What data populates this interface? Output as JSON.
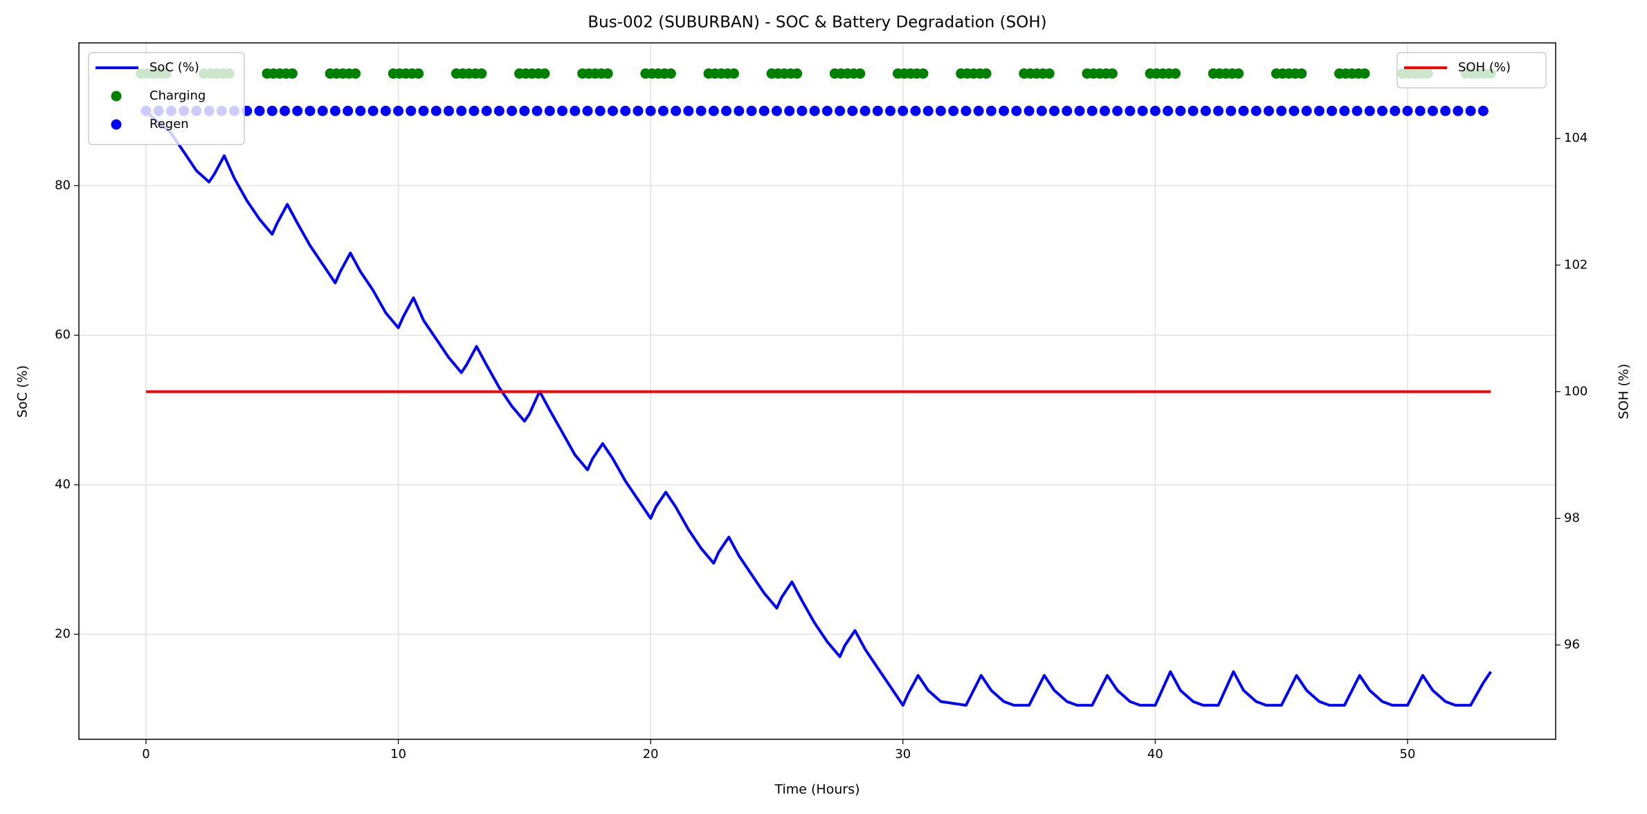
{
  "chart_data": {
    "type": "line",
    "title": "Bus-002 (SUBURBAN) - SOC & Battery Degradation (SOH)",
    "xlabel": "Time (Hours)",
    "ylabel": "SoC (%)",
    "y2label": "SOH (%)",
    "xlim": [
      -2.66,
      55.87
    ],
    "ylim": [
      5.95,
      99.1
    ],
    "y2lim": [
      94.51,
      105.51
    ],
    "xticks": [
      0,
      10,
      20,
      30,
      40,
      50
    ],
    "yticks": [
      20,
      40,
      60,
      80
    ],
    "y2ticks": [
      96,
      98,
      100,
      102,
      104
    ],
    "grid": true,
    "legend": "upper left",
    "y2_legend": "upper right",
    "series": [
      {
        "name": "SoC (%)",
        "type": "line",
        "color": "#0000ff",
        "x": [
          0,
          0.3,
          1.0,
          1.5,
          2.0,
          2.5,
          2.7,
          3.1,
          3.5,
          4.0,
          4.5,
          5.0,
          5.2,
          5.6,
          6.0,
          6.5,
          7.0,
          7.5,
          7.7,
          8.1,
          8.5,
          9.0,
          9.5,
          10.0,
          10.2,
          10.6,
          11.0,
          11.5,
          12.0,
          12.5,
          12.7,
          13.1,
          13.5,
          14.0,
          14.5,
          15.0,
          15.2,
          15.6,
          16.0,
          16.5,
          17.0,
          17.5,
          17.7,
          18.1,
          18.5,
          19.0,
          19.5,
          20.0,
          20.2,
          20.6,
          21.0,
          21.5,
          22.0,
          22.5,
          22.7,
          23.1,
          23.5,
          24.0,
          24.5,
          25.0,
          25.2,
          25.6,
          26.0,
          26.5,
          27.0,
          27.5,
          27.7,
          28.1,
          28.5,
          29.0,
          29.5,
          30.0,
          30.2,
          30.6,
          31.0,
          31.5,
          32.5,
          33.1,
          33.5,
          34.0,
          34.4,
          35.0,
          35.6,
          36.0,
          36.5,
          36.9,
          37.5,
          38.1,
          38.5,
          39.0,
          39.4,
          40.0,
          40.6,
          41.0,
          41.5,
          41.9,
          42.5,
          43.1,
          43.5,
          44.0,
          44.4,
          45.0,
          45.6,
          46.0,
          46.5,
          46.9,
          47.5,
          48.1,
          48.5,
          49.0,
          49.4,
          50.0,
          50.6,
          51.0,
          51.5,
          51.9,
          52.5,
          53.0,
          53.3
        ],
        "values": [
          90,
          89,
          87,
          84.5,
          82,
          80.5,
          81.5,
          84,
          81,
          78,
          75.5,
          73.5,
          75,
          77.5,
          75,
          72,
          69.5,
          67,
          68.5,
          71,
          68.5,
          66,
          63,
          61,
          62.5,
          65,
          62,
          59.5,
          57,
          55,
          56,
          58.5,
          56,
          53,
          50.5,
          48.5,
          49.5,
          52.5,
          50,
          47,
          44,
          42,
          43.5,
          45.5,
          43.5,
          40.5,
          38,
          35.5,
          37,
          39,
          37,
          34,
          31.5,
          29.5,
          31,
          33,
          30.5,
          28,
          25.5,
          23.5,
          25,
          27,
          24.5,
          21.5,
          19,
          17,
          18.5,
          20.5,
          18,
          15.5,
          13,
          10.5,
          12,
          14.5,
          12.5,
          11,
          10.5,
          14.5,
          12.5,
          11,
          10.5,
          10.5,
          14.5,
          12.5,
          11,
          10.5,
          10.5,
          14.5,
          12.5,
          11,
          10.5,
          10.5,
          15,
          12.5,
          11,
          10.5,
          10.5,
          15,
          12.5,
          11,
          10.5,
          10.5,
          14.5,
          12.5,
          11,
          10.5,
          10.5,
          14.5,
          12.5,
          11,
          10.5,
          10.5,
          14.5,
          12.5,
          11,
          10.5,
          10.5,
          13.5,
          15
        ]
      },
      {
        "name": "Charging",
        "type": "scatter",
        "color": "#008000",
        "x": [
          -0.2,
          0.05,
          0.3,
          0.55,
          0.8,
          2.3,
          2.55,
          2.8,
          3.05,
          3.3,
          4.8,
          5.05,
          5.3,
          5.55,
          5.8,
          7.3,
          7.55,
          7.8,
          8.05,
          8.3,
          9.8,
          10.05,
          10.3,
          10.55,
          10.8,
          12.3,
          12.55,
          12.8,
          13.05,
          13.3,
          14.8,
          15.05,
          15.3,
          15.55,
          15.8,
          17.3,
          17.55,
          17.8,
          18.05,
          18.3,
          19.8,
          20.05,
          20.3,
          20.55,
          20.8,
          22.3,
          22.55,
          22.8,
          23.05,
          23.3,
          24.8,
          25.05,
          25.3,
          25.55,
          25.8,
          27.3,
          27.55,
          27.8,
          28.05,
          28.3,
          29.8,
          30.05,
          30.3,
          30.55,
          30.8,
          32.3,
          32.55,
          32.8,
          33.05,
          33.3,
          34.8,
          35.05,
          35.3,
          35.55,
          35.8,
          37.3,
          37.55,
          37.8,
          38.05,
          38.3,
          39.8,
          40.05,
          40.3,
          40.55,
          40.8,
          42.3,
          42.55,
          42.8,
          43.05,
          43.3,
          44.8,
          45.05,
          45.3,
          45.55,
          45.8,
          47.3,
          47.55,
          47.8,
          48.05,
          48.3,
          49.8,
          50.05,
          50.3,
          50.55,
          50.8,
          52.3,
          52.55,
          52.8,
          53.05,
          53.3
        ],
        "values": [
          95,
          95,
          95,
          95,
          95,
          95,
          95,
          95,
          95,
          95,
          95,
          95,
          95,
          95,
          95,
          95,
          95,
          95,
          95,
          95,
          95,
          95,
          95,
          95,
          95,
          95,
          95,
          95,
          95,
          95,
          95,
          95,
          95,
          95,
          95,
          95,
          95,
          95,
          95,
          95,
          95,
          95,
          95,
          95,
          95,
          95,
          95,
          95,
          95,
          95,
          95,
          95,
          95,
          95,
          95,
          95,
          95,
          95,
          95,
          95,
          95,
          95,
          95,
          95,
          95,
          95,
          95,
          95,
          95,
          95,
          95,
          95,
          95,
          95,
          95,
          95,
          95,
          95,
          95,
          95,
          95,
          95,
          95,
          95,
          95,
          95,
          95,
          95,
          95,
          95,
          95,
          95,
          95,
          95,
          95,
          95,
          95,
          95,
          95,
          95,
          95,
          95,
          95,
          95,
          95,
          95,
          95,
          95,
          95,
          95
        ]
      },
      {
        "name": "Regen",
        "type": "scatter",
        "color": "#0000ff",
        "x": [
          0,
          0.5,
          1,
          1.5,
          2,
          2.5,
          3,
          3.5,
          4,
          4.5,
          5,
          5.5,
          6,
          6.5,
          7,
          7.5,
          8,
          8.5,
          9,
          9.5,
          10,
          10.5,
          11,
          11.5,
          12,
          12.5,
          13,
          13.5,
          14,
          14.5,
          15,
          15.5,
          16,
          16.5,
          17,
          17.5,
          18,
          18.5,
          19,
          19.5,
          20,
          20.5,
          21,
          21.5,
          22,
          22.5,
          23,
          23.5,
          24,
          24.5,
          25,
          25.5,
          26,
          26.5,
          27,
          27.5,
          28,
          28.5,
          29,
          29.5,
          30,
          30.5,
          31,
          31.5,
          32,
          32.5,
          33,
          33.5,
          34,
          34.5,
          35,
          35.5,
          36,
          36.5,
          37,
          37.5,
          38,
          38.5,
          39,
          39.5,
          40,
          40.5,
          41,
          41.5,
          42,
          42.5,
          43,
          43.5,
          44,
          44.5,
          45,
          45.5,
          46,
          46.5,
          47,
          47.5,
          48,
          48.5,
          49,
          49.5,
          50,
          50.5,
          51,
          51.5,
          52,
          52.5,
          53
        ],
        "values": [
          90,
          90,
          90,
          90,
          90,
          90,
          90,
          90,
          90,
          90,
          90,
          90,
          90,
          90,
          90,
          90,
          90,
          90,
          90,
          90,
          90,
          90,
          90,
          90,
          90,
          90,
          90,
          90,
          90,
          90,
          90,
          90,
          90,
          90,
          90,
          90,
          90,
          90,
          90,
          90,
          90,
          90,
          90,
          90,
          90,
          90,
          90,
          90,
          90,
          90,
          90,
          90,
          90,
          90,
          90,
          90,
          90,
          90,
          90,
          90,
          90,
          90,
          90,
          90,
          90,
          90,
          90,
          90,
          90,
          90,
          90,
          90,
          90,
          90,
          90,
          90,
          90,
          90,
          90,
          90,
          90,
          90,
          90,
          90,
          90,
          90,
          90,
          90,
          90,
          90,
          90,
          90,
          90,
          90,
          90,
          90,
          90,
          90,
          90,
          90,
          90,
          90,
          90,
          90,
          90,
          90,
          90
        ]
      },
      {
        "name": "SOH (%)",
        "type": "line",
        "color": "#ff0000",
        "axis": "y2",
        "x": [
          0,
          53.3
        ],
        "values": [
          100,
          100
        ]
      }
    ]
  }
}
